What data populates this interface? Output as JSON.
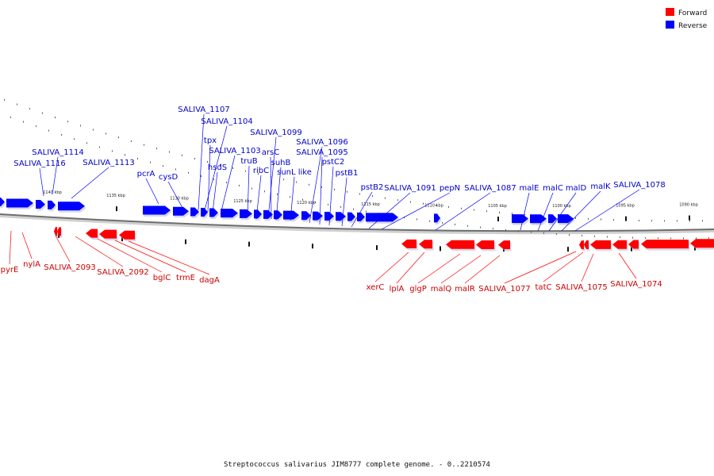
{
  "legend": [
    {
      "label": "Forward",
      "color": "#ff0000"
    },
    {
      "label": "Reverse",
      "color": "#0000ff"
    }
  ],
  "caption": "Streptococcus salivarius JIM8777 complete genome. - 0..2210574",
  "colors": {
    "forward": "#ff0000",
    "reverse": "#0000ff",
    "backbone": "#888888"
  },
  "ticks": [
    "1140 kbp",
    "1135 kbp",
    "1130 kbp",
    "1125 kbp",
    "1120 kbp",
    "1115 kbp",
    "1110 kbp",
    "1105 kbp",
    "1100 kbp",
    "1095 kbp",
    "1090 kbp"
  ],
  "reverse_labels": [
    "SALIVA_1116",
    "SALIVA_1114",
    "SALIVA_1113",
    "pcrA",
    "cysD",
    "SALIVA_1107",
    "SALIVA_1104",
    "tpx",
    "hsdS",
    "SALIVA_1103",
    "truB",
    "ribC",
    "SALIVA_1099",
    "arsC",
    "suhB",
    "sunL like",
    "SALIVA_1096",
    "SALIVA_1095",
    "pstC2",
    "pstB1",
    "pstB2",
    "SALIVA_1091",
    "pepN",
    "SALIVA_1087",
    "malE",
    "malC",
    "malD",
    "malK",
    "SALIVA_1078"
  ],
  "forward_labels": [
    "pyrE",
    "nylA",
    "SALIVA_2093",
    "SALIVA_2092",
    "bglC",
    "trmE",
    "dagA",
    "xerC",
    "lplA",
    "glgP",
    "malQ",
    "malR",
    "SALIVA_1077",
    "tatC",
    "SALIVA_1075",
    "SALIVA_1074"
  ]
}
